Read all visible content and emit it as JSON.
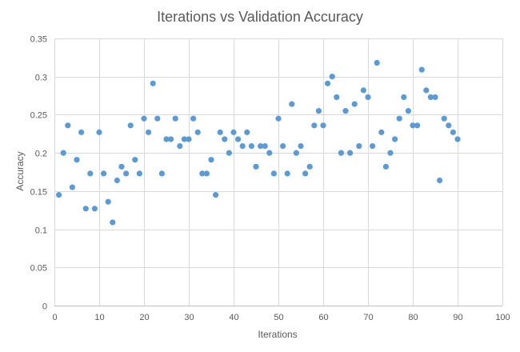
{
  "chart_data": {
    "type": "scatter",
    "title": "Iterations vs Validation Accuracy",
    "xlabel": "Iterations",
    "ylabel": "Accuracy",
    "xlim": [
      0,
      100
    ],
    "ylim": [
      0,
      0.35
    ],
    "x_ticks": [
      0,
      10,
      20,
      30,
      40,
      50,
      60,
      70,
      80,
      90,
      100
    ],
    "y_ticks": [
      0,
      0.05,
      0.1,
      0.15,
      0.2,
      0.25,
      0.3,
      0.35
    ],
    "x_tick_labels": [
      "0",
      "10",
      "20",
      "30",
      "40",
      "50",
      "60",
      "70",
      "80",
      "90",
      "100"
    ],
    "y_tick_labels": [
      "0",
      "0.05",
      "0.1",
      "0.15",
      "0.2",
      "0.25",
      "0.3",
      "0.35"
    ],
    "grid": true,
    "legend": false,
    "series": [
      {
        "color": "#5b9bd5",
        "points": [
          {
            "x": 1,
            "y": 0.145
          },
          {
            "x": 2,
            "y": 0.2
          },
          {
            "x": 3,
            "y": 0.236
          },
          {
            "x": 4,
            "y": 0.155
          },
          {
            "x": 5,
            "y": 0.191
          },
          {
            "x": 6,
            "y": 0.227
          },
          {
            "x": 7,
            "y": 0.127
          },
          {
            "x": 8,
            "y": 0.173
          },
          {
            "x": 9,
            "y": 0.127
          },
          {
            "x": 10,
            "y": 0.227
          },
          {
            "x": 11,
            "y": 0.173
          },
          {
            "x": 12,
            "y": 0.136
          },
          {
            "x": 13,
            "y": 0.109
          },
          {
            "x": 14,
            "y": 0.164
          },
          {
            "x": 15,
            "y": 0.182
          },
          {
            "x": 16,
            "y": 0.173
          },
          {
            "x": 17,
            "y": 0.236
          },
          {
            "x": 18,
            "y": 0.191
          },
          {
            "x": 19,
            "y": 0.173
          },
          {
            "x": 20,
            "y": 0.245
          },
          {
            "x": 21,
            "y": 0.227
          },
          {
            "x": 22,
            "y": 0.291
          },
          {
            "x": 23,
            "y": 0.245
          },
          {
            "x": 24,
            "y": 0.173
          },
          {
            "x": 25,
            "y": 0.218
          },
          {
            "x": 26,
            "y": 0.218
          },
          {
            "x": 27,
            "y": 0.245
          },
          {
            "x": 28,
            "y": 0.209
          },
          {
            "x": 29,
            "y": 0.218
          },
          {
            "x": 30,
            "y": 0.218
          },
          {
            "x": 31,
            "y": 0.245
          },
          {
            "x": 32,
            "y": 0.227
          },
          {
            "x": 33,
            "y": 0.173
          },
          {
            "x": 34,
            "y": 0.173
          },
          {
            "x": 35,
            "y": 0.191
          },
          {
            "x": 36,
            "y": 0.145
          },
          {
            "x": 37,
            "y": 0.227
          },
          {
            "x": 38,
            "y": 0.218
          },
          {
            "x": 39,
            "y": 0.2
          },
          {
            "x": 40,
            "y": 0.227
          },
          {
            "x": 41,
            "y": 0.218
          },
          {
            "x": 42,
            "y": 0.209
          },
          {
            "x": 43,
            "y": 0.227
          },
          {
            "x": 44,
            "y": 0.209
          },
          {
            "x": 45,
            "y": 0.182
          },
          {
            "x": 46,
            "y": 0.209
          },
          {
            "x": 47,
            "y": 0.209
          },
          {
            "x": 48,
            "y": 0.2
          },
          {
            "x": 49,
            "y": 0.173
          },
          {
            "x": 50,
            "y": 0.245
          },
          {
            "x": 51,
            "y": 0.209
          },
          {
            "x": 52,
            "y": 0.173
          },
          {
            "x": 53,
            "y": 0.264
          },
          {
            "x": 54,
            "y": 0.2
          },
          {
            "x": 55,
            "y": 0.209
          },
          {
            "x": 56,
            "y": 0.173
          },
          {
            "x": 57,
            "y": 0.182
          },
          {
            "x": 58,
            "y": 0.236
          },
          {
            "x": 59,
            "y": 0.255
          },
          {
            "x": 60,
            "y": 0.236
          },
          {
            "x": 61,
            "y": 0.291
          },
          {
            "x": 62,
            "y": 0.3
          },
          {
            "x": 63,
            "y": 0.273
          },
          {
            "x": 64,
            "y": 0.2
          },
          {
            "x": 65,
            "y": 0.255
          },
          {
            "x": 66,
            "y": 0.2
          },
          {
            "x": 67,
            "y": 0.264
          },
          {
            "x": 68,
            "y": 0.209
          },
          {
            "x": 69,
            "y": 0.282
          },
          {
            "x": 70,
            "y": 0.273
          },
          {
            "x": 71,
            "y": 0.209
          },
          {
            "x": 72,
            "y": 0.318
          },
          {
            "x": 73,
            "y": 0.227
          },
          {
            "x": 74,
            "y": 0.182
          },
          {
            "x": 75,
            "y": 0.2
          },
          {
            "x": 76,
            "y": 0.218
          },
          {
            "x": 77,
            "y": 0.245
          },
          {
            "x": 78,
            "y": 0.273
          },
          {
            "x": 79,
            "y": 0.255
          },
          {
            "x": 80,
            "y": 0.236
          },
          {
            "x": 81,
            "y": 0.236
          },
          {
            "x": 82,
            "y": 0.309
          },
          {
            "x": 83,
            "y": 0.282
          },
          {
            "x": 84,
            "y": 0.273
          },
          {
            "x": 85,
            "y": 0.273
          },
          {
            "x": 86,
            "y": 0.164
          },
          {
            "x": 87,
            "y": 0.245
          },
          {
            "x": 88,
            "y": 0.236
          },
          {
            "x": 89,
            "y": 0.227
          },
          {
            "x": 90,
            "y": 0.218
          }
        ]
      }
    ]
  }
}
